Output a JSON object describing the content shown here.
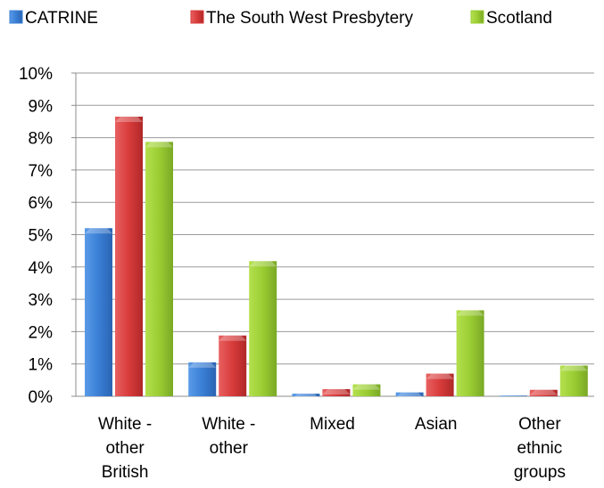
{
  "chart_data": {
    "type": "bar",
    "title": "",
    "xlabel": "",
    "ylabel": "",
    "ylim": [
      0,
      10
    ],
    "y_unit": "%",
    "y_ticks": [
      "0%",
      "1%",
      "2%",
      "3%",
      "4%",
      "5%",
      "6%",
      "7%",
      "8%",
      "9%",
      "10%"
    ],
    "grid": true,
    "legend_position": "top",
    "categories": [
      [
        "White -",
        "other",
        "British"
      ],
      [
        "White -",
        "other"
      ],
      [
        "Mixed"
      ],
      [
        "Asian"
      ],
      [
        "Other",
        "ethnic",
        "groups"
      ]
    ],
    "series": [
      {
        "name": "CATRINE",
        "color": "#3a7fd5",
        "values": [
          5.2,
          1.05,
          0.08,
          0.12,
          0.02
        ]
      },
      {
        "name": "The South West Presbytery",
        "color": "#d83b3b",
        "values": [
          8.65,
          1.88,
          0.22,
          0.7,
          0.2
        ]
      },
      {
        "name": "Scotland",
        "color": "#9acd32",
        "values": [
          7.87,
          4.18,
          0.37,
          2.66,
          0.95
        ]
      }
    ]
  }
}
